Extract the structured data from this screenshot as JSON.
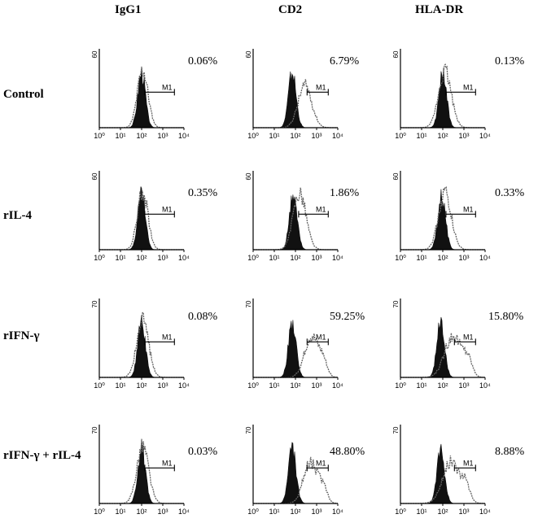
{
  "chart_data": {
    "type": "histogram-grid",
    "columns": [
      "IgG1",
      "CD2",
      "HLA-DR"
    ],
    "rows": [
      "Control",
      "rIL-4",
      "rIFN-γ",
      "rIFN-γ + rIL-4"
    ],
    "x_tick_labels": [
      "10⁰",
      "10¹",
      "10²",
      "10³",
      "10⁴"
    ],
    "x_scale": "log",
    "gate_label": "M1",
    "panels": [
      {
        "row": 0,
        "col": 0,
        "ymax_label": "60",
        "percent": "0.06%",
        "filled_peak": 2.0,
        "open_peak": 2.05,
        "open_width": 0.25,
        "shoulder": null
      },
      {
        "row": 0,
        "col": 1,
        "ymax_label": "60",
        "percent": "6.79%",
        "filled_peak": 1.85,
        "open_peak": 2.45,
        "open_width": 0.32,
        "shoulder": null
      },
      {
        "row": 0,
        "col": 2,
        "ymax_label": "60",
        "percent": "0.13%",
        "filled_peak": 2.0,
        "open_peak": 2.1,
        "open_width": 0.3,
        "shoulder": null
      },
      {
        "row": 1,
        "col": 0,
        "ymax_label": "60",
        "percent": "0.35%",
        "filled_peak": 2.0,
        "open_peak": 2.05,
        "open_width": 0.25,
        "shoulder": null
      },
      {
        "row": 1,
        "col": 1,
        "ymax_label": "60",
        "percent": "1.86%",
        "filled_peak": 1.9,
        "open_peak": 2.2,
        "open_width": 0.3,
        "shoulder": null
      },
      {
        "row": 1,
        "col": 2,
        "ymax_label": "60",
        "percent": "0.33%",
        "filled_peak": 1.95,
        "open_peak": 2.1,
        "open_width": 0.3,
        "shoulder": null
      },
      {
        "row": 2,
        "col": 0,
        "ymax_label": "70",
        "percent": "0.08%",
        "filled_peak": 2.0,
        "open_peak": 2.05,
        "open_width": 0.28,
        "shoulder": null
      },
      {
        "row": 2,
        "col": 1,
        "ymax_label": "70",
        "percent": "59.25%",
        "filled_peak": 1.85,
        "open_peak": 2.75,
        "open_width": 0.32,
        "shoulder": 3.3
      },
      {
        "row": 2,
        "col": 2,
        "ymax_label": "70",
        "percent": "15.80%",
        "filled_peak": 1.9,
        "open_peak": 2.5,
        "open_width": 0.4,
        "shoulder": 3.2
      },
      {
        "row": 3,
        "col": 0,
        "ymax_label": "70",
        "percent": "0.03%",
        "filled_peak": 2.0,
        "open_peak": 2.05,
        "open_width": 0.28,
        "shoulder": null
      },
      {
        "row": 3,
        "col": 1,
        "ymax_label": "70",
        "percent": "48.80%",
        "filled_peak": 1.85,
        "open_peak": 2.7,
        "open_width": 0.32,
        "shoulder": 3.3
      },
      {
        "row": 3,
        "col": 2,
        "ymax_label": "70",
        "percent": "8.88%",
        "filled_peak": 1.9,
        "open_peak": 2.4,
        "open_width": 0.4,
        "shoulder": 3.1
      }
    ]
  }
}
